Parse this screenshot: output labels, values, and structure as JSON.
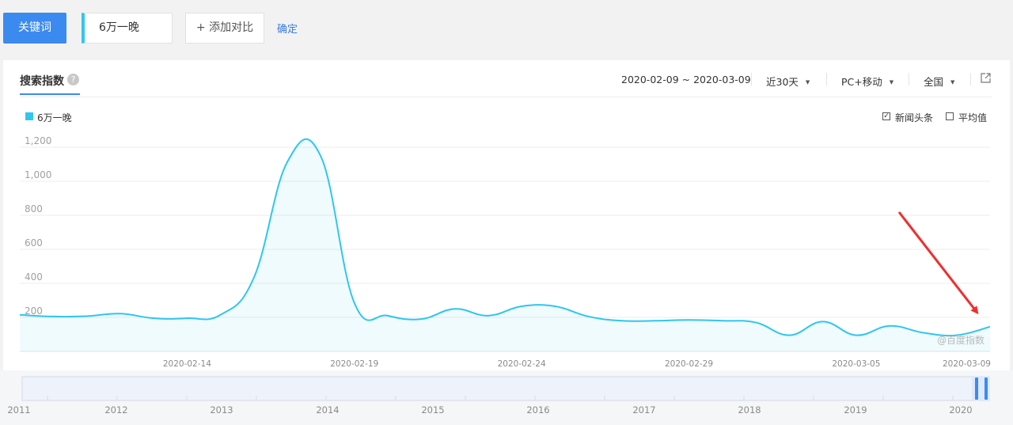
{
  "toolbar": {
    "keyword_button": "关键词",
    "keyword_value": "6万一晚",
    "add_compare": "+ 添加对比",
    "confirm": "确定"
  },
  "panel": {
    "tab_title": "搜索指数",
    "help_glyph": "?",
    "date_range": "2020-02-09 ~ 2020-03-09",
    "period": "近30天",
    "device": "PC+移动",
    "region": "全国",
    "caret": "▼",
    "options": [
      {
        "label": "新闻头条",
        "checked": true
      },
      {
        "label": "平均值",
        "checked": false
      }
    ],
    "watermark": "@百度指数"
  },
  "colors": {
    "accent": "#3b8af0",
    "series": "#2fc6f0",
    "arrow": "#f22d2d"
  },
  "chart_data": {
    "type": "area",
    "title": "",
    "xlabel": "",
    "ylabel": "",
    "ylim": [
      0,
      1200
    ],
    "yticks": [
      200,
      400,
      600,
      800,
      1000,
      1200
    ],
    "ytick_labels": [
      "200",
      "400",
      "600",
      "800",
      "1,000",
      "1,200"
    ],
    "xtick_labels": [
      "2020-02-14",
      "2020-02-19",
      "2020-02-24",
      "2020-02-29",
      "2020-03-05",
      "2020-03-09"
    ],
    "xtick_index": [
      5,
      10,
      15,
      20,
      25,
      29
    ],
    "grid": true,
    "legend": "top-left",
    "series": [
      {
        "name": "6万一晚",
        "x": [
          "2020-02-09",
          "2020-02-10",
          "2020-02-11",
          "2020-02-12",
          "2020-02-13",
          "2020-02-14",
          "2020-02-15",
          "2020-02-16",
          "2020-02-17",
          "2020-02-18",
          "2020-02-19",
          "2020-02-20",
          "2020-02-21",
          "2020-02-22",
          "2020-02-23",
          "2020-02-24",
          "2020-02-25",
          "2020-02-26",
          "2020-02-27",
          "2020-02-28",
          "2020-02-29",
          "2020-03-01",
          "2020-03-02",
          "2020-03-03",
          "2020-03-04",
          "2020-03-05",
          "2020-03-06",
          "2020-03-07",
          "2020-03-08",
          "2020-03-09"
        ],
        "values": [
          215,
          205,
          207,
          222,
          195,
          195,
          215,
          435,
          1115,
          1145,
          285,
          210,
          190,
          250,
          210,
          265,
          265,
          205,
          180,
          180,
          185,
          180,
          170,
          95,
          175,
          95,
          150,
          110,
          95,
          145
        ]
      }
    ],
    "navigator": {
      "year_labels": [
        "2011",
        "2012",
        "2013",
        "2014",
        "2015",
        "2016",
        "2017",
        "2018",
        "2019",
        "2020"
      ]
    }
  }
}
